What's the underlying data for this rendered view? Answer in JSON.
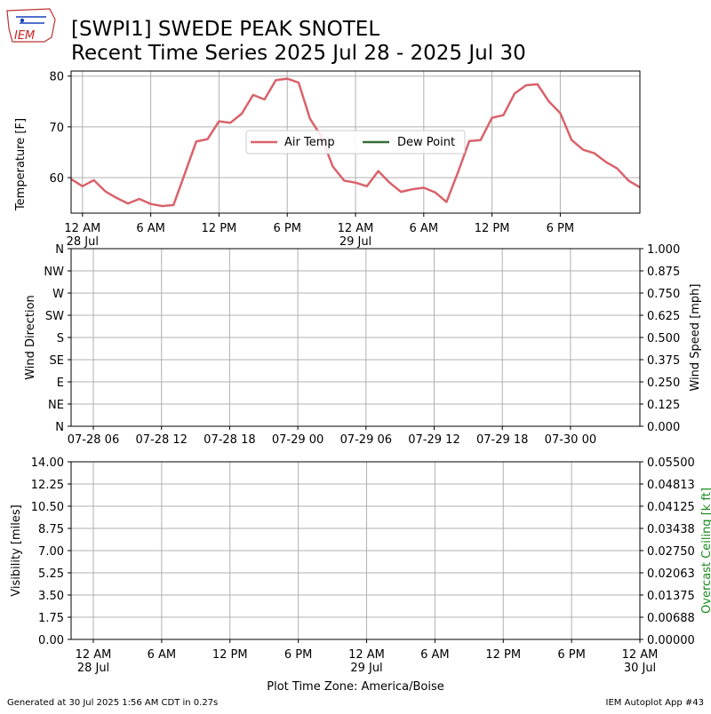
{
  "logo": {
    "text": "IEM"
  },
  "header": {
    "title_line1": "[SWPI1] SWEDE PEAK SNOTEL",
    "title_line2": "Recent Time Series 2025 Jul 28 - 2025 Jul 30"
  },
  "footer": {
    "generated": "Generated at 30 Jul 2025 1:56 AM CDT in 0.27s",
    "app": "IEM Autoplot App #43"
  },
  "colors": {
    "air_temp": "#d9626b",
    "dew_point": "#386c38",
    "overcast_label": "#1a8a1a",
    "grid": "#b0b0b0"
  },
  "chart_data": [
    {
      "type": "line",
      "ylabel": "Temperature [F]",
      "ylim": [
        53,
        81
      ],
      "yticks": [
        60,
        70,
        80
      ],
      "grid": true,
      "legend": {
        "placement": "center",
        "entries": [
          "Air Temp",
          "Dew Point"
        ]
      },
      "xtick_labels": [
        {
          "label": "12 AM",
          "sub": "28 Jul"
        },
        {
          "label": "6 AM",
          "sub": ""
        },
        {
          "label": "12 PM",
          "sub": ""
        },
        {
          "label": "6 PM",
          "sub": ""
        },
        {
          "label": "12 AM",
          "sub": "29 Jul"
        },
        {
          "label": "6 AM",
          "sub": ""
        },
        {
          "label": "12 PM",
          "sub": ""
        },
        {
          "label": "6 PM",
          "sub": ""
        }
      ],
      "xlim_hours": [
        -1,
        49
      ],
      "series": [
        {
          "name": "Air Temp",
          "hours": [
            -1,
            0,
            1,
            2,
            3,
            4,
            5,
            6,
            7,
            8,
            9,
            10,
            11,
            12,
            13,
            14,
            15,
            16,
            17,
            18,
            19,
            20,
            21,
            22,
            23,
            24,
            25,
            26,
            27,
            28,
            29,
            30,
            31,
            32,
            33,
            34,
            35,
            36,
            37,
            38,
            39,
            40,
            41,
            42,
            43,
            44,
            45,
            46,
            47,
            48,
            49
          ],
          "values": [
            59.7,
            58.3,
            59.5,
            57.3,
            56.0,
            54.9,
            55.8,
            54.8,
            54.4,
            54.6,
            60.8,
            67.1,
            67.6,
            71.1,
            70.8,
            72.6,
            76.3,
            75.4,
            79.2,
            79.5,
            78.7,
            71.6,
            68.1,
            62.2,
            59.4,
            59.0,
            58.3,
            61.3,
            59.0,
            57.2,
            57.7,
            58.0,
            57.1,
            55.2,
            61.0,
            67.2,
            67.4,
            71.8,
            72.3,
            76.6,
            78.2,
            78.4,
            75.0,
            72.7,
            67.4,
            65.5,
            64.8,
            63.1,
            61.8,
            59.4,
            58.1
          ]
        },
        {
          "name": "Dew Point",
          "values": []
        }
      ]
    },
    {
      "type": "line",
      "ylabel": "Wind Direction",
      "ylabel_right": "Wind Speed [mph]",
      "yticks_left": [
        "N",
        "NE",
        "E",
        "SE",
        "S",
        "SW",
        "W",
        "NW",
        "N"
      ],
      "ylim_right": [
        0,
        1
      ],
      "yticks_right": [
        "0.000",
        "0.125",
        "0.250",
        "0.375",
        "0.500",
        "0.625",
        "0.750",
        "0.875",
        "1.000"
      ],
      "xtick_labels": [
        "07-28 06",
        "07-28 12",
        "07-28 18",
        "07-29 00",
        "07-29 06",
        "07-29 12",
        "07-29 18",
        "07-30 00"
      ],
      "grid": true,
      "series": []
    },
    {
      "type": "line",
      "ylabel": "Visibility [miles]",
      "ylabel_right": "Overcast Ceiling [k ft]",
      "ylim": [
        0,
        14
      ],
      "yticks_left": [
        "0.00",
        "1.75",
        "3.50",
        "5.25",
        "7.00",
        "8.75",
        "10.50",
        "12.25",
        "14.00"
      ],
      "ylim_right": [
        0,
        0.055
      ],
      "yticks_right": [
        "0.00000",
        "0.00688",
        "0.01375",
        "0.02063",
        "0.02750",
        "0.03438",
        "0.04125",
        "0.04813",
        "0.05500"
      ],
      "xtick_labels": [
        {
          "label": "12 AM",
          "sub": "28 Jul"
        },
        {
          "label": "6 AM",
          "sub": ""
        },
        {
          "label": "12 PM",
          "sub": ""
        },
        {
          "label": "6 PM",
          "sub": ""
        },
        {
          "label": "12 AM",
          "sub": "29 Jul"
        },
        {
          "label": "6 AM",
          "sub": ""
        },
        {
          "label": "12 PM",
          "sub": ""
        },
        {
          "label": "6 PM",
          "sub": ""
        },
        {
          "label": "12 AM",
          "sub": "30 Jul"
        }
      ],
      "xlabel": "Plot Time Zone: America/Boise",
      "grid": true,
      "series": []
    }
  ]
}
